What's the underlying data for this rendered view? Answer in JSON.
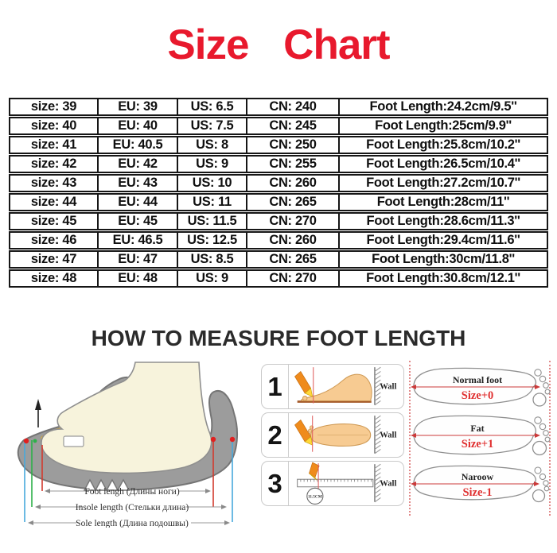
{
  "title": "Size  Chart",
  "colors": {
    "accent_red": "#e8192d",
    "heading_dark": "#2b2b2b",
    "table_border": "#161616",
    "measure_line_red": "#d23a2e",
    "measure_line_green": "#2eb04a",
    "measure_line_blue": "#47a8dc"
  },
  "size_table": {
    "rows": [
      [
        "size: 39",
        "EU: 39",
        "US: 6.5",
        "CN: 240",
        "Foot Length:24.2cm/9.5''"
      ],
      [
        "size: 40",
        "EU: 40",
        "US: 7.5",
        "CN: 245",
        "Foot Length:25cm/9.9''"
      ],
      [
        "size: 41",
        "EU: 40.5",
        "US: 8",
        "CN: 250",
        "Foot Length:25.8cm/10.2''"
      ],
      [
        "size: 42",
        "EU: 42",
        "US: 9",
        "CN: 255",
        "Foot Length:26.5cm/10.4''"
      ],
      [
        "size: 43",
        "EU: 43",
        "US: 10",
        "CN: 260",
        "Foot Length:27.2cm/10.7''"
      ],
      [
        "size: 44",
        "EU: 44",
        "US: 11",
        "CN: 265",
        "Foot Length:28cm/11''"
      ],
      [
        "size: 45",
        "EU: 45",
        "US: 11.5",
        "CN: 270",
        "Foot Length:28.6cm/11.3''"
      ],
      [
        "size: 46",
        "EU: 46.5",
        "US: 12.5",
        "CN: 260",
        "Foot Length:29.4cm/11.6''"
      ],
      [
        "size: 47",
        "EU: 47",
        "US: 8.5",
        "CN: 265",
        "Foot Length:30cm/11.8''"
      ],
      [
        "size: 48",
        "EU: 48",
        "US: 9",
        "CN: 270",
        "Foot Length:30.8cm/12.1''"
      ]
    ]
  },
  "chart_data": {
    "type": "table",
    "columns": [
      "size",
      "EU",
      "US",
      "CN",
      "Foot Length"
    ],
    "rows": [
      [
        "39",
        "39",
        "6.5",
        "240",
        "24.2cm/9.5''"
      ],
      [
        "40",
        "40",
        "7.5",
        "245",
        "25cm/9.9''"
      ],
      [
        "41",
        "40.5",
        "8",
        "250",
        "25.8cm/10.2''"
      ],
      [
        "42",
        "42",
        "9",
        "255",
        "26.5cm/10.4''"
      ],
      [
        "43",
        "43",
        "10",
        "260",
        "27.2cm/10.7''"
      ],
      [
        "44",
        "44",
        "11",
        "265",
        "28cm/11''"
      ],
      [
        "45",
        "45",
        "11.5",
        "270",
        "28.6cm/11.3''"
      ],
      [
        "46",
        "46.5",
        "12.5",
        "260",
        "29.4cm/11.6''"
      ],
      [
        "47",
        "47",
        "8.5",
        "265",
        "30cm/11.8''"
      ],
      [
        "48",
        "48",
        "9",
        "270",
        "30.8cm/12.1''"
      ]
    ],
    "title": "Size Chart"
  },
  "measure": {
    "heading": "HOW TO MEASURE FOOT LENGTH",
    "shoe_labels": [
      "Foot lengh (Длины ноги)",
      "Insole length (Стельки длина)",
      "Sole length (Длина подошвы)"
    ],
    "steps": [
      {
        "number": "1",
        "wall": "Wall"
      },
      {
        "number": "2",
        "wall": "Wall"
      },
      {
        "number": "3",
        "wall": "Wall",
        "ruler_note": "11.5CM"
      }
    ],
    "foot_types": [
      {
        "label": "Normal foot",
        "size": "Size+0"
      },
      {
        "label": "Fat",
        "size": "Size+1"
      },
      {
        "label": "Naroow",
        "size": "Size-1"
      }
    ]
  }
}
